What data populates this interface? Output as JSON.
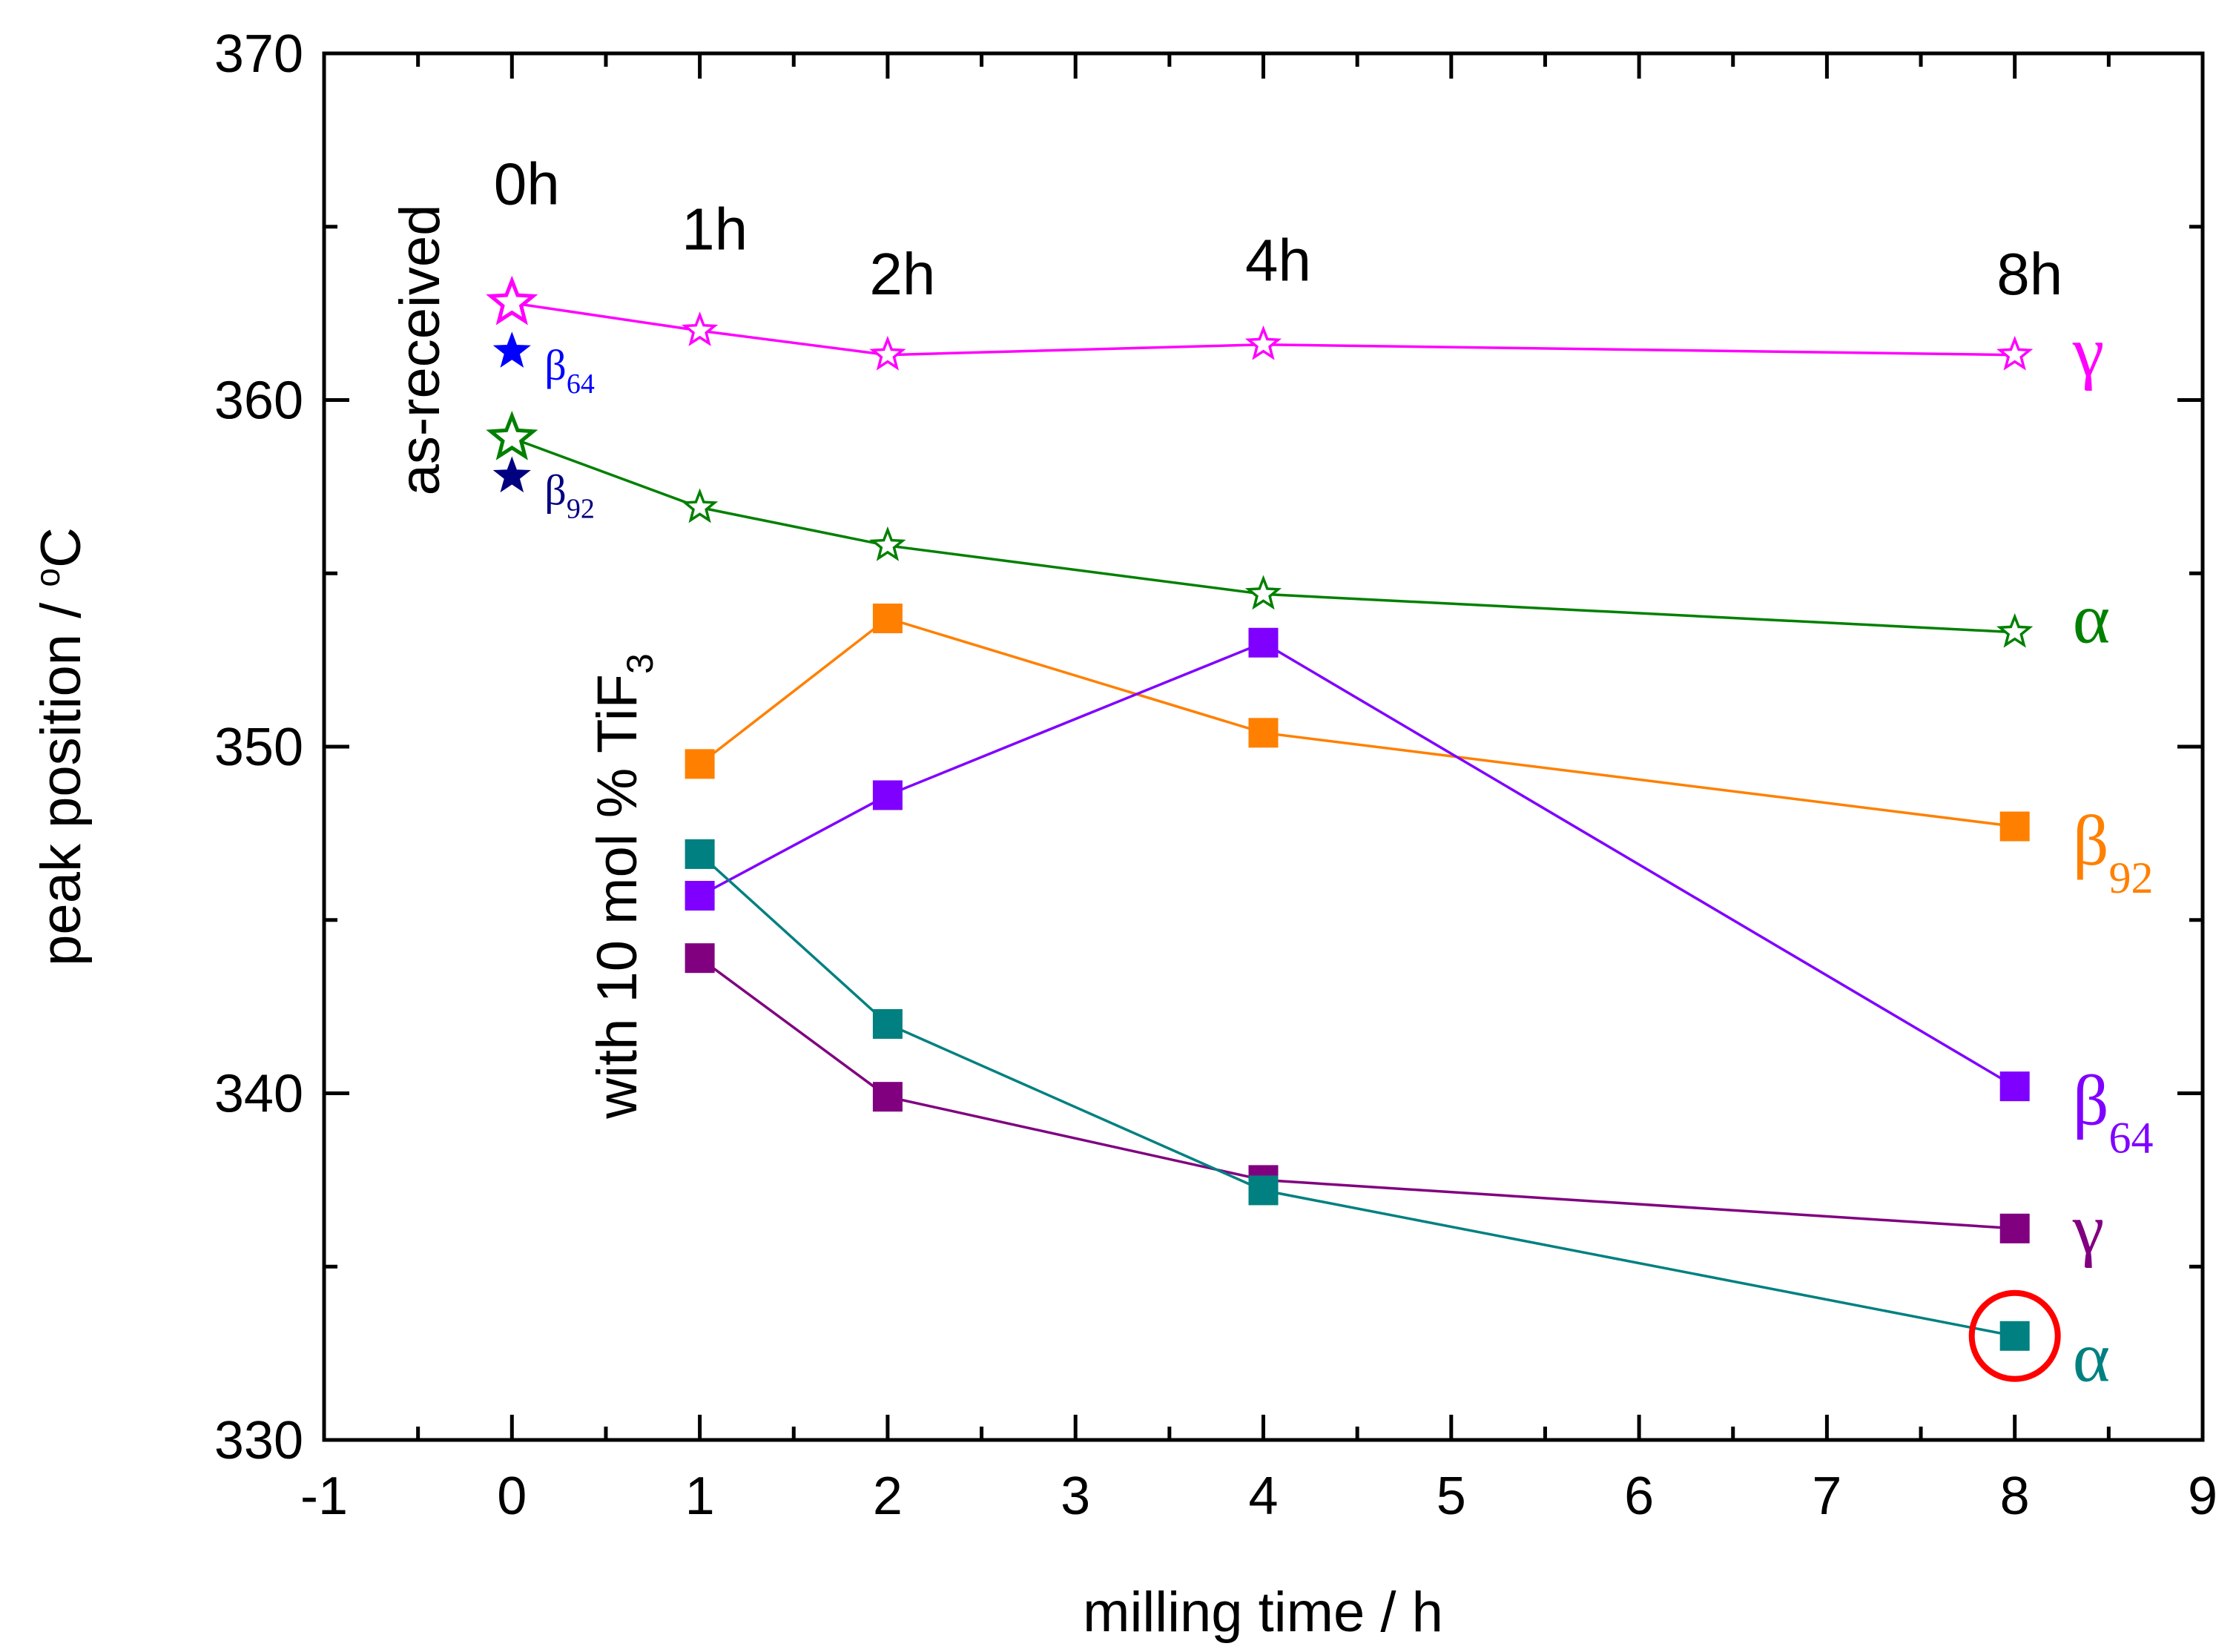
{
  "chart_data": {
    "type": "line",
    "xlabel": "milling time / h",
    "ylabel_main": "peak position / ",
    "ylabel_deg": "o",
    "ylabel_unit": "C",
    "xlim": [
      -1,
      9
    ],
    "ylim": [
      330,
      370
    ],
    "xticks": [
      -1,
      0,
      1,
      2,
      3,
      4,
      5,
      6,
      7,
      8,
      9
    ],
    "yticks": [
      330,
      340,
      350,
      360,
      370
    ],
    "time_labels": [
      {
        "x": 0,
        "y": 366.2,
        "text": "0h"
      },
      {
        "x": 1,
        "y": 364.9,
        "text": "1h"
      },
      {
        "x": 2,
        "y": 363.6,
        "text": "2h"
      },
      {
        "x": 4,
        "y": 364.0,
        "text": "4h"
      },
      {
        "x": 8,
        "y": 363.6,
        "text": "8h"
      }
    ],
    "annotations": {
      "as_received": "as-received",
      "with_tif3_main": "with 10 mol % TiF",
      "with_tif3_sub": "3"
    },
    "as_received_points": [
      {
        "name": "β64",
        "x": 0,
        "y": 361.4,
        "color": "#0000ff",
        "symbol": "β",
        "sub": "64"
      },
      {
        "name": "β92",
        "x": 0,
        "y": 357.8,
        "color": "#000080",
        "symbol": "β",
        "sub": "92"
      }
    ],
    "series": [
      {
        "name": "γ (as-received, milled)",
        "marker": "star-open",
        "color": "#ff00ff",
        "x": [
          0,
          1,
          2,
          4,
          8
        ],
        "y": [
          362.8,
          362.0,
          361.3,
          361.6,
          361.3
        ],
        "label_symbol": "γ",
        "label_sub": "",
        "label_y": 361.3
      },
      {
        "name": "α (as-received, milled)",
        "marker": "star-open",
        "color": "#008000",
        "x": [
          0,
          1,
          2,
          4,
          8
        ],
        "y": [
          358.9,
          356.9,
          355.8,
          354.4,
          353.3
        ],
        "label_symbol": "α",
        "label_sub": "",
        "label_y": 353.6
      },
      {
        "name": "β92 (with TiF3)",
        "marker": "square",
        "color": "#ff8000",
        "x": [
          1,
          2,
          4,
          8
        ],
        "y": [
          349.5,
          353.7,
          350.4,
          347.7
        ],
        "label_symbol": "β",
        "label_sub": "92",
        "label_y": 347.2
      },
      {
        "name": "β64 (with TiF3)",
        "marker": "square",
        "color": "#8000ff",
        "x": [
          1,
          2,
          4,
          8
        ],
        "y": [
          345.7,
          348.6,
          353.0,
          340.2
        ],
        "label_symbol": "β",
        "label_sub": "64",
        "label_y": 339.7
      },
      {
        "name": "γ (with TiF3)",
        "marker": "square",
        "color": "#800080",
        "x": [
          1,
          2,
          4,
          8
        ],
        "y": [
          343.9,
          339.9,
          337.5,
          336.1
        ],
        "label_symbol": "γ",
        "label_sub": "",
        "label_y": 336.0
      },
      {
        "name": "α (with TiF3)",
        "marker": "square",
        "color": "#008080",
        "x": [
          1,
          2,
          4,
          8
        ],
        "y": [
          346.9,
          342.0,
          337.2,
          333.0
        ],
        "label_symbol": "α",
        "label_sub": "",
        "label_y": 332.3
      }
    ],
    "highlight": {
      "x": 8,
      "y": 333.0,
      "color": "#ff0000"
    }
  }
}
